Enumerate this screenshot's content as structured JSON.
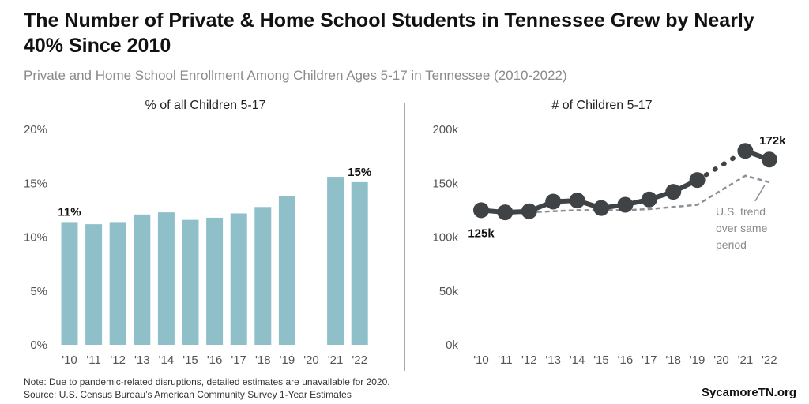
{
  "title": "The Number of Private & Home School Students in Tennessee Grew by Nearly 40% Since 2010",
  "subtitle": "Private and Home School Enrollment Among Children Ages 5-17 in Tennessee (2010-2022)",
  "note_line1": "Note: Due to pandemic-related disruptions, detailed estimates are unavailable for 2020.",
  "note_line2": "Source: U.S. Census Bureau’s American Community Survey 1-Year Estimates",
  "brand": "SycamoreTN.org",
  "colors": {
    "bar": "#8fc0c9",
    "line": "#3f4346",
    "us_trend": "#8a9096",
    "divider": "#555555"
  },
  "chart_data": [
    {
      "type": "bar",
      "title": "% of all Children 5-17",
      "categories": [
        "'10",
        "'11",
        "'12",
        "'13",
        "'14",
        "'15",
        "'16",
        "'17",
        "'18",
        "'19",
        "'20",
        "'21",
        "'22"
      ],
      "values": [
        11.4,
        11.2,
        11.4,
        12.1,
        12.3,
        11.6,
        11.8,
        12.2,
        12.8,
        13.8,
        null,
        15.6,
        15.1
      ],
      "ylim": [
        0,
        20
      ],
      "yticks": [
        "0%",
        "5%",
        "10%",
        "15%",
        "20%"
      ],
      "data_labels": [
        {
          "index": 0,
          "text": "11%"
        },
        {
          "index": 12,
          "text": "15%"
        }
      ]
    },
    {
      "type": "line",
      "title": "# of Children 5-17",
      "categories": [
        "'10",
        "'11",
        "'12",
        "'13",
        "'14",
        "'15",
        "'16",
        "'17",
        "'18",
        "'19",
        "'20",
        "'21",
        "'22"
      ],
      "ylim": [
        0,
        200
      ],
      "yticks": [
        "0k",
        "50k",
        "100k",
        "150k",
        "200k"
      ],
      "series": [
        {
          "name": "Tennessee",
          "values": [
            125,
            123,
            124,
            133,
            134,
            127,
            130,
            135,
            142,
            153,
            null,
            180,
            172
          ]
        },
        {
          "name": "U.S. trend over same period",
          "values": [
            null,
            null,
            123,
            124,
            125,
            125,
            125,
            126,
            128,
            130,
            null,
            157,
            151
          ]
        }
      ],
      "data_labels": [
        {
          "index": 0,
          "text": "125k"
        },
        {
          "index": 12,
          "text": "172k"
        }
      ],
      "annotation": [
        "U.S. trend",
        "over same",
        "period"
      ]
    }
  ]
}
